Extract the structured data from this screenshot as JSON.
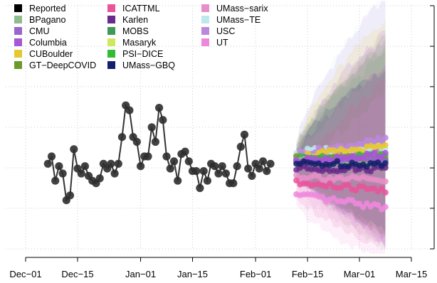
{
  "chart_data": {
    "type": "line",
    "title": "",
    "xlabel": "",
    "ylabel": "",
    "x_ticks": [
      "Dec−01",
      "Dec−15",
      "Jan−01",
      "Jan−15",
      "Feb−01",
      "Feb−15",
      "Mar−01",
      "Mar−15"
    ],
    "x_range": [
      "2020-12-01",
      "2021-03-15"
    ],
    "y_range": [
      0,
      1
    ],
    "y_tick_labels_visible": false,
    "grid": true,
    "legend_position": "top-left",
    "legend": [
      {
        "name": "Reported",
        "color": "#000000"
      },
      {
        "name": "BPagano",
        "color": "#8fbc8f"
      },
      {
        "name": "CMU",
        "color": "#9966cc"
      },
      {
        "name": "Columbia",
        "color": "#a855d6"
      },
      {
        "name": "CUBoulder",
        "color": "#e6c830"
      },
      {
        "name": "GT−DeepCOVID",
        "color": "#6a9a2a"
      },
      {
        "name": "ICATTML",
        "color": "#e8559a"
      },
      {
        "name": "Karlen",
        "color": "#6a2c8c"
      },
      {
        "name": "MOBS",
        "color": "#3f9a5a"
      },
      {
        "name": "Masaryk",
        "color": "#cfe860"
      },
      {
        "name": "PSI−DICE",
        "color": "#33bb33"
      },
      {
        "name": "UMass−GBQ",
        "color": "#14206a"
      },
      {
        "name": "UMass−sarix",
        "color": "#e68fc8"
      },
      {
        "name": "UMass−TE",
        "color": "#bfe8ee"
      },
      {
        "name": "USC",
        "color": "#bb88dd"
      },
      {
        "name": "UT",
        "color": "#ee88dd"
      }
    ],
    "reported": {
      "x": [
        "2020-12-07",
        "2020-12-08",
        "2020-12-09",
        "2020-12-10",
        "2020-12-11",
        "2020-12-12",
        "2020-12-13",
        "2020-12-14",
        "2020-12-15",
        "2020-12-16",
        "2020-12-17",
        "2020-12-18",
        "2020-12-19",
        "2020-12-20",
        "2020-12-21",
        "2020-12-22",
        "2020-12-23",
        "2020-12-24",
        "2020-12-25",
        "2020-12-26",
        "2020-12-27",
        "2020-12-28",
        "2020-12-29",
        "2020-12-30",
        "2020-12-31",
        "2021-01-01",
        "2021-01-02",
        "2021-01-03",
        "2021-01-04",
        "2021-01-05",
        "2021-01-06",
        "2021-01-07",
        "2021-01-08",
        "2021-01-09",
        "2021-01-10",
        "2021-01-11",
        "2021-01-12",
        "2021-01-13",
        "2021-01-14",
        "2021-01-15",
        "2021-01-16",
        "2021-01-17",
        "2021-01-18",
        "2021-01-19",
        "2021-01-20",
        "2021-01-21",
        "2021-01-22",
        "2021-01-23",
        "2021-01-24",
        "2021-01-25",
        "2021-01-26",
        "2021-01-27",
        "2021-01-28",
        "2021-01-29",
        "2021-01-30",
        "2021-01-31",
        "2021-02-01",
        "2021-02-02",
        "2021-02-03",
        "2021-02-04",
        "2021-02-05"
      ],
      "y": [
        0.35,
        0.38,
        0.28,
        0.34,
        0.31,
        0.2,
        0.22,
        0.41,
        0.33,
        0.31,
        0.34,
        0.3,
        0.28,
        0.27,
        0.29,
        0.35,
        0.33,
        0.35,
        0.31,
        0.35,
        0.46,
        0.59,
        0.57,
        0.46,
        0.44,
        0.34,
        0.38,
        0.38,
        0.5,
        0.44,
        0.58,
        0.53,
        0.38,
        0.33,
        0.36,
        0.28,
        0.39,
        0.4,
        0.36,
        0.32,
        0.32,
        0.25,
        0.32,
        0.28,
        0.35,
        0.34,
        0.31,
        0.34,
        0.31,
        0.27,
        0.27,
        0.34,
        0.42,
        0.47,
        0.33,
        0.3,
        0.35,
        0.33,
        0.36,
        0.32,
        0.35
      ]
    },
    "forecast": {
      "x_start": "2021-02-12",
      "x_end": "2021-03-08",
      "series": [
        {
          "name": "UMass−TE",
          "color": "#bfe8ee",
          "start": 0.4,
          "end": 0.42,
          "lower_end": 0.12,
          "upper_end": 1.0
        },
        {
          "name": "USC",
          "color": "#bb88dd",
          "start": 0.39,
          "end": 0.45,
          "lower_end": 0.05,
          "upper_end": 0.99
        },
        {
          "name": "CUBoulder",
          "color": "#e6c830",
          "start": 0.38,
          "end": 0.42,
          "lower_end": 0.1,
          "upper_end": 0.9
        },
        {
          "name": "Masaryk",
          "color": "#cfe860",
          "start": 0.37,
          "end": 0.37,
          "lower_end": 0.1,
          "upper_end": 0.85
        },
        {
          "name": "MOBS",
          "color": "#3f9a5a",
          "start": 0.37,
          "end": 0.36,
          "lower_end": 0.12,
          "upper_end": 0.8
        },
        {
          "name": "PSI−DICE",
          "color": "#33bb33",
          "start": 0.37,
          "end": 0.38,
          "lower_end": 0.12,
          "upper_end": 0.75
        },
        {
          "name": "GT−DeepCOVID",
          "color": "#6a9a2a",
          "start": 0.37,
          "end": 0.37,
          "lower_end": 0.12,
          "upper_end": 0.78
        },
        {
          "name": "BPagano",
          "color": "#8fbc8f",
          "start": 0.36,
          "end": 0.34,
          "lower_end": 0.05,
          "upper_end": 0.8
        },
        {
          "name": "CMU",
          "color": "#9966cc",
          "start": 0.36,
          "end": 0.37,
          "lower_end": 0.08,
          "upper_end": 0.82
        },
        {
          "name": "Columbia",
          "color": "#a855d6",
          "start": 0.36,
          "end": 0.39,
          "lower_end": 0.06,
          "upper_end": 0.85
        },
        {
          "name": "Karlen",
          "color": "#6a2c8c",
          "start": 0.33,
          "end": 0.33,
          "lower_end": 0.1,
          "upper_end": 0.7
        },
        {
          "name": "UMass−GBQ",
          "color": "#14206a",
          "start": 0.35,
          "end": 0.35,
          "lower_end": 0.12,
          "upper_end": 0.7
        },
        {
          "name": "UMass−sarix",
          "color": "#e68fc8",
          "start": 0.3,
          "end": 0.28,
          "lower_end": 0.06,
          "upper_end": 0.72
        },
        {
          "name": "ICATTML",
          "color": "#e8559a",
          "start": 0.27,
          "end": 0.24,
          "lower_end": 0.05,
          "upper_end": 0.65
        },
        {
          "name": "UT",
          "color": "#ee88dd",
          "start": 0.22,
          "end": 0.17,
          "lower_end": 0.0,
          "upper_end": 0.6
        }
      ]
    }
  }
}
